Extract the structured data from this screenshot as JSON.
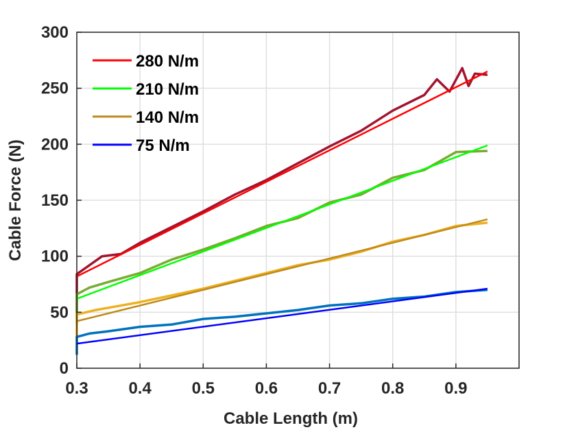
{
  "chart_data": {
    "type": "line",
    "title": "",
    "xlabel": "Cable Length (m)",
    "ylabel": "Cable Force (N)",
    "xlim": [
      0.3,
      1.0
    ],
    "ylim": [
      0,
      300
    ],
    "xticks": [
      "0.3",
      "0.4",
      "0.5",
      "0.6",
      "0.7",
      "0.8",
      "0.9"
    ],
    "yticks": [
      "0",
      "50",
      "100",
      "150",
      "200",
      "250",
      "300"
    ],
    "grid": true,
    "legend_position": "top-left",
    "series": [
      {
        "name": "280 N/m",
        "fit_color": "#ff0000",
        "measured_color": "#a2142f",
        "fit": {
          "x": [
            0.3,
            0.95
          ],
          "y": [
            82,
            265
          ]
        },
        "measured": {
          "x": [
            0.3,
            0.3,
            0.31,
            0.34,
            0.37,
            0.4,
            0.45,
            0.5,
            0.55,
            0.6,
            0.65,
            0.7,
            0.75,
            0.8,
            0.85,
            0.87,
            0.89,
            0.91,
            0.92,
            0.93,
            0.95
          ],
          "y": [
            50,
            84,
            88,
            100,
            102,
            112,
            126,
            140,
            155,
            168,
            183,
            198,
            212,
            230,
            244,
            258,
            247,
            268,
            252,
            263,
            262
          ]
        }
      },
      {
        "name": "210 N/m",
        "fit_color": "#00ff00",
        "measured_color": "#77ac30",
        "fit": {
          "x": [
            0.3,
            0.95
          ],
          "y": [
            62,
            199
          ]
        },
        "measured": {
          "x": [
            0.3,
            0.3,
            0.32,
            0.35,
            0.4,
            0.45,
            0.5,
            0.55,
            0.6,
            0.65,
            0.7,
            0.75,
            0.8,
            0.85,
            0.9,
            0.95
          ],
          "y": [
            40,
            66,
            72,
            77,
            85,
            97,
            106,
            116,
            127,
            134,
            148,
            155,
            170,
            177,
            193,
            194
          ]
        }
      },
      {
        "name": "140 N/m",
        "fit_color": "#bf8a1c",
        "measured_color": "#edb120",
        "fit": {
          "x": [
            0.3,
            0.95
          ],
          "y": [
            42,
            133
          ]
        },
        "measured": {
          "x": [
            0.3,
            0.3,
            0.33,
            0.36,
            0.4,
            0.45,
            0.5,
            0.55,
            0.6,
            0.65,
            0.7,
            0.75,
            0.8,
            0.85,
            0.9,
            0.95
          ],
          "y": [
            28,
            48,
            52,
            55,
            59,
            65,
            71,
            78,
            85,
            92,
            97,
            104,
            113,
            119,
            127,
            130
          ]
        }
      },
      {
        "name": "75 N/m",
        "fit_color": "#0000ff",
        "measured_color": "#0072bd",
        "fit": {
          "x": [
            0.3,
            0.95
          ],
          "y": [
            22,
            71
          ]
        },
        "measured": {
          "x": [
            0.3,
            0.3,
            0.32,
            0.35,
            0.4,
            0.45,
            0.5,
            0.55,
            0.6,
            0.65,
            0.7,
            0.75,
            0.8,
            0.85,
            0.9,
            0.95
          ],
          "y": [
            12,
            28,
            31,
            33,
            37,
            39,
            44,
            46,
            49,
            52,
            56,
            58,
            62,
            64,
            68,
            70
          ]
        }
      }
    ]
  }
}
